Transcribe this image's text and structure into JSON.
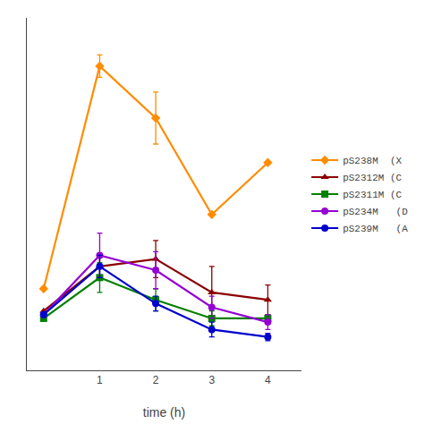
{
  "chart_data": {
    "type": "line",
    "x": [
      0,
      1,
      2,
      3,
      4
    ],
    "series": [
      {
        "name": "pS238M  (X",
        "color": "#FF8C00",
        "marker": "diamond",
        "values": [
          0.22,
          0.82,
          0.68,
          0.42,
          0.56
        ],
        "yerr": [
          0.0,
          0.03,
          0.07,
          0.0,
          0.0
        ]
      },
      {
        "name": "pS2312M (C",
        "color": "#8B0000",
        "marker": "triangle-up",
        "values": [
          0.16,
          0.28,
          0.3,
          0.21,
          0.19
        ],
        "yerr": [
          0.0,
          0.03,
          0.05,
          0.07,
          0.04
        ]
      },
      {
        "name": "pS2311M (C",
        "color": "#008000",
        "marker": "square",
        "values": [
          0.14,
          0.25,
          0.19,
          0.14,
          0.14
        ],
        "yerr": [
          0.0,
          0.04,
          0.03,
          0.02,
          0.01
        ]
      },
      {
        "name": "pS234M   (D",
        "color": "#9400D3",
        "marker": "circle",
        "values": [
          0.15,
          0.31,
          0.27,
          0.17,
          0.13
        ],
        "yerr": [
          0.0,
          0.06,
          0.05,
          0.03,
          0.02
        ]
      },
      {
        "name": "pS239M   (A",
        "color": "#0000CD",
        "marker": "circle",
        "values": [
          0.15,
          0.28,
          0.18,
          0.11,
          0.09
        ],
        "yerr": [
          0.0,
          0.03,
          0.02,
          0.02,
          0.01
        ]
      }
    ],
    "xlabel": "time (h)",
    "xlim": [
      -0.3,
      4.6
    ],
    "ylim": [
      0.0,
      0.95
    ],
    "xticks": [
      1,
      2,
      3,
      4
    ],
    "tick_labels": "x",
    "grid": false,
    "legend": "right"
  }
}
